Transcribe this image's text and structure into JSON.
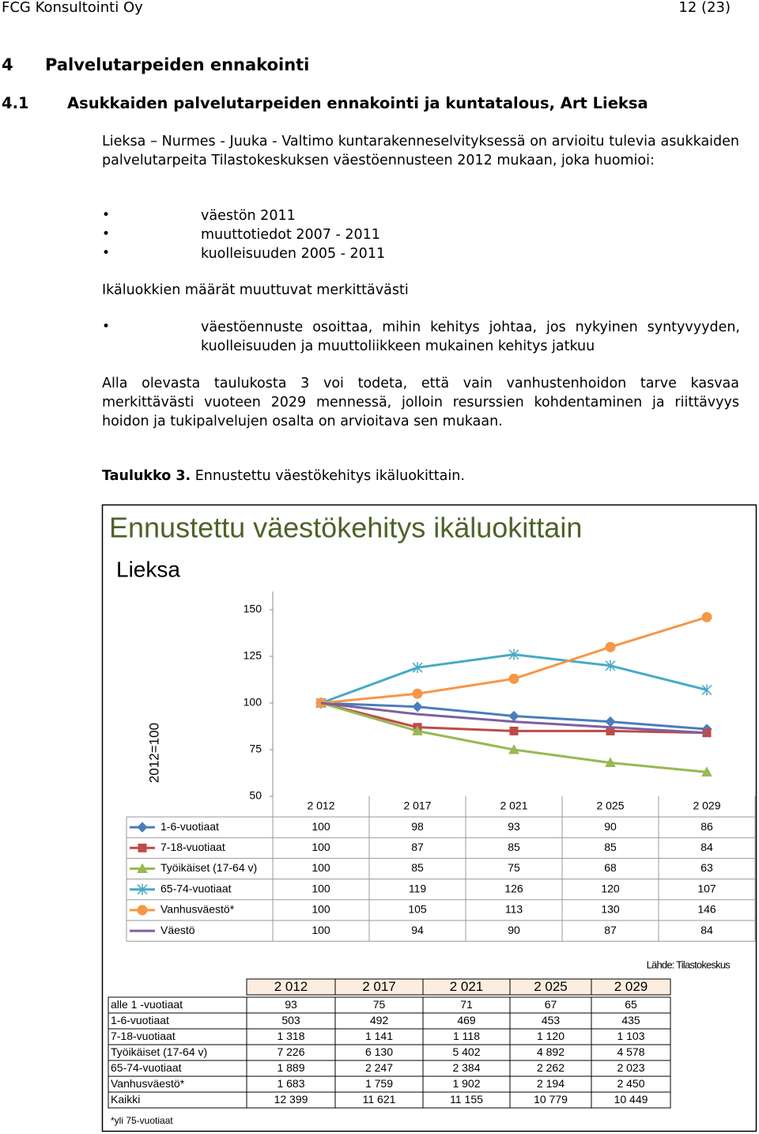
{
  "header": {
    "left": "FCG Konsultointi Oy",
    "right": "12 (23)"
  },
  "heading": {
    "number": "4",
    "title": "Palvelutarpeiden ennakointi"
  },
  "subheading": {
    "number": "4.1",
    "title": "Asukkaiden palvelutarpeiden ennakointi ja kuntatalous, Art Lieksa"
  },
  "intro": "Lieksa – Nurmes - Juuka - Valtimo kuntarakenneselvityksessä on arvioitu tulevia asukkaiden palvelutarpeita Tilastokeskuksen väestöennusteen 2012 mukaan, joka huomioi:",
  "bullets": [
    "väestön 2011",
    "muuttotiedot 2007 - 2011",
    "kuolleisuuden 2005 - 2011"
  ],
  "note": "Ikäluokkien määrät muuttuvat merkittävästi",
  "bullets2": [
    "väestöennuste osoittaa, mihin kehitys johtaa, jos nykyinen syntyvyyden, kuolleisuuden ja muuttoliikkeen mukainen kehitys jatkuu"
  ],
  "paragraph": "Alla olevasta taulukosta 3 voi todeta, että vain vanhustenhoidon tarve kasvaa merkittävästi vuoteen 2029 mennessä, jolloin resurssien kohdentaminen ja riittävyys hoidon ja tukipalvelujen osalta on arvioitava sen mukaan.",
  "caption": {
    "label": "Taulukko 3.",
    "text": "Ennustettu väestökehitys ikäluokittain."
  },
  "chart_data": {
    "type": "line",
    "title": "Ennustettu väestökehitys ikäluokittain",
    "subtitle": "Lieksa",
    "y_label": "2012=100",
    "categories": [
      "2 012",
      "2 017",
      "2 021",
      "2 025",
      "2 029"
    ],
    "series": [
      {
        "name": "1-6-vuotiaat",
        "color": "#4a7ebb",
        "marker": "diamond",
        "values": [
          100,
          98,
          93,
          90,
          86
        ]
      },
      {
        "name": "7-18-vuotiaat",
        "color": "#be4b48",
        "marker": "square",
        "values": [
          100,
          87,
          85,
          85,
          84
        ]
      },
      {
        "name": "Työikäiset (17-64 v)",
        "color": "#98b954",
        "marker": "triangle",
        "values": [
          100,
          85,
          75,
          68,
          63
        ]
      },
      {
        "name": "65-74-vuotiaat",
        "color": "#46aac5",
        "marker": "asterisk",
        "values": [
          100,
          119,
          126,
          120,
          107
        ]
      },
      {
        "name": "Vanhusväestö*",
        "color": "#f79646",
        "marker": "circle",
        "values": [
          100,
          105,
          113,
          130,
          146
        ]
      },
      {
        "name": "Väestö",
        "color": "#7d60a0",
        "marker": "none",
        "values": [
          100,
          94,
          90,
          87,
          84
        ]
      }
    ],
    "ylim": [
      50,
      150
    ],
    "yticks": [
      50,
      75,
      100,
      125,
      150
    ],
    "source": "Lähde: Tilastokeskus"
  },
  "table": {
    "columns": [
      "2 012",
      "2 017",
      "2 021",
      "2 025",
      "2 029"
    ],
    "rows": [
      [
        "alle 1 -vuotiaat",
        "93",
        "75",
        "71",
        "67",
        "65"
      ],
      [
        "1-6-vuotiaat",
        "503",
        "492",
        "469",
        "453",
        "435"
      ],
      [
        "7-18-vuotiaat",
        "1 318",
        "1 141",
        "1 118",
        "1 120",
        "1 103"
      ],
      [
        "Työikäiset (17-64 v)",
        "7 226",
        "6 130",
        "5 402",
        "4 892",
        "4 578"
      ],
      [
        "65-74-vuotiaat",
        "1 889",
        "2 247",
        "2 384",
        "2 262",
        "2 023"
      ],
      [
        "Vanhusväestö*",
        "1 683",
        "1 759",
        "1 902",
        "2 194",
        "2 450"
      ],
      [
        "Kaikki",
        "12 399",
        "11 621",
        "11 155",
        "10 779",
        "10 449"
      ]
    ],
    "footnote": "*yli 75-vuotiaat"
  }
}
